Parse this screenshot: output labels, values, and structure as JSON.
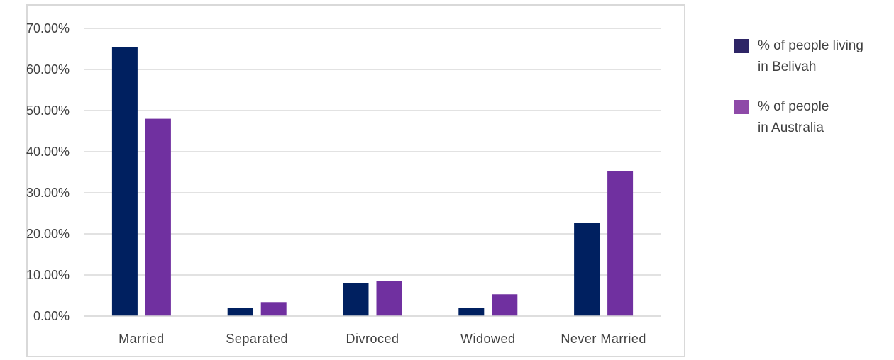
{
  "chart_data": {
    "type": "bar",
    "categories": [
      "Married",
      "Separated",
      "Divroced",
      "Widowed",
      "Never Married"
    ],
    "series": [
      {
        "name": "% of people living in Belivah",
        "name_lines": [
          "% of people living",
          "in Belivah"
        ],
        "color": "#002060",
        "values": [
          65.5,
          2.0,
          8.0,
          2.0,
          22.7
        ]
      },
      {
        "name": "% of people in Australia",
        "name_lines": [
          "% of people",
          "in Australia"
        ],
        "color": "#7030A0",
        "values": [
          48.0,
          3.4,
          8.5,
          5.3,
          35.2
        ]
      }
    ],
    "y_ticks": [
      "0.00%",
      "10.00%",
      "20.00%",
      "30.00%",
      "40.00%",
      "50.00%",
      "60.00%",
      "70.00%"
    ],
    "ylim": [
      0,
      70
    ],
    "grid": true,
    "legend_position": "right"
  }
}
